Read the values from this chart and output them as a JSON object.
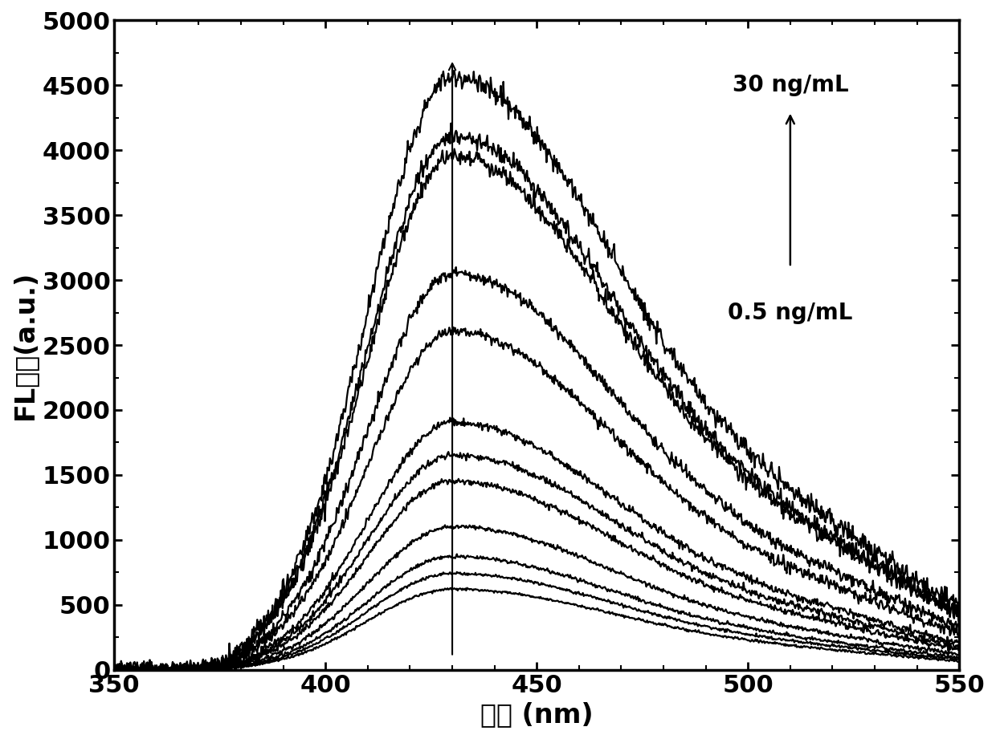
{
  "xlabel": "波长 (nm)",
  "ylabel": "FL强度(a.u.)",
  "xlim": [
    350,
    550
  ],
  "ylim": [
    0,
    5000
  ],
  "yticks": [
    0,
    500,
    1000,
    1500,
    2000,
    2500,
    3000,
    3500,
    4000,
    4500,
    5000
  ],
  "xticks": [
    350,
    400,
    450,
    500,
    550
  ],
  "peak_x": 430,
  "annotation_top": "30 ng/mL",
  "annotation_bottom": "0.5 ng/mL",
  "peak_values": [
    620,
    740,
    870,
    1100,
    1450,
    1650,
    1900,
    2600,
    3050,
    3950,
    4100,
    4550
  ],
  "background_color": "#ffffff",
  "font_size_ticks": 22,
  "font_size_labels": 24,
  "font_size_annotations": 20
}
